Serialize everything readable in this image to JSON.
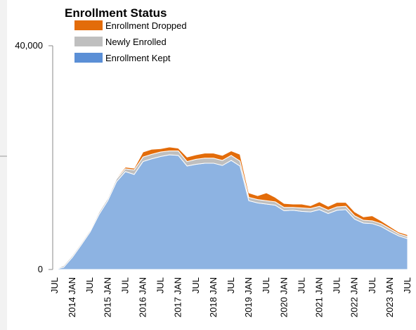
{
  "chart_data": {
    "type": "stacked-area",
    "title": "Enrollment Status",
    "categories": [
      "JUL",
      null,
      "2014 JAN",
      null,
      "JUL",
      null,
      "2015 JAN",
      null,
      "JUL",
      null,
      "2016 JAN",
      null,
      "JUL",
      null,
      "2017 JAN",
      null,
      "JUL",
      null,
      "2018 JAN",
      null,
      "JUL",
      null,
      "2019 JAN",
      null,
      "JUL",
      null,
      "2020 JAN",
      null,
      "JUL",
      null,
      "2021 JAN",
      null,
      "JUL",
      null,
      "2022 JAN",
      null,
      "JUL",
      null,
      "2023 JAN",
      null,
      "JUL"
    ],
    "series": [
      {
        "name": "Enrollment Kept",
        "color": "#8db3e2",
        "legend_color": "#5b8fd6",
        "values": [
          0,
          400,
          2200,
          4400,
          6700,
          9800,
          12300,
          15700,
          17500,
          17000,
          19300,
          19800,
          20200,
          20500,
          20400,
          18500,
          18800,
          19000,
          19000,
          18600,
          19500,
          18500,
          12300,
          11900,
          11700,
          11500,
          10500,
          10600,
          10400,
          10300,
          10700,
          10000,
          10600,
          10700,
          9000,
          8300,
          8200,
          7700,
          6800,
          6000,
          5500
        ]
      },
      {
        "name": "Newly Enrolled",
        "color": "#bfbfbf",
        "values": [
          0,
          300,
          300,
          300,
          300,
          400,
          400,
          500,
          500,
          800,
          800,
          800,
          800,
          700,
          800,
          800,
          900,
          900,
          900,
          900,
          900,
          900,
          600,
          600,
          600,
          600,
          600,
          500,
          600,
          600,
          600,
          600,
          600,
          600,
          600,
          500,
          500,
          500,
          500,
          400,
          400
        ]
      },
      {
        "name": "Enrollment Dropped",
        "color": "#e36c0a",
        "values": [
          0,
          0,
          0,
          0,
          0,
          100,
          100,
          200,
          300,
          300,
          900,
          900,
          600,
          700,
          500,
          800,
          800,
          900,
          900,
          900,
          800,
          1200,
          800,
          700,
          1400,
          800,
          700,
          600,
          700,
          500,
          800,
          700,
          800,
          700,
          700,
          600,
          900,
          500,
          400,
          300,
          300
        ]
      }
    ],
    "ylim": [
      0,
      40000
    ],
    "yticks": [
      0,
      {
        "value": 40000,
        "label": "40,000"
      }
    ]
  }
}
